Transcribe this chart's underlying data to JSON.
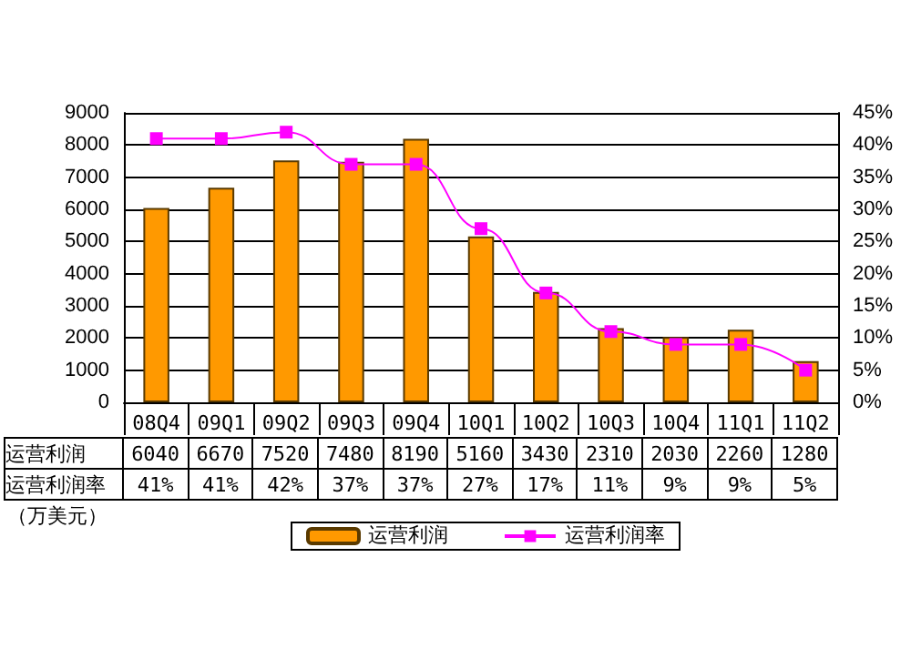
{
  "chart_data": {
    "type": "bar",
    "categories": [
      "08Q4",
      "09Q1",
      "09Q2",
      "09Q3",
      "09Q4",
      "10Q1",
      "10Q2",
      "10Q3",
      "10Q4",
      "11Q1",
      "11Q2"
    ],
    "series": [
      {
        "name": "运营利润",
        "color": "#ff9900",
        "values": [
          6040,
          6670,
          7520,
          7480,
          8190,
          5160,
          3430,
          2310,
          2030,
          2260,
          1280
        ],
        "value_labels": [
          "6040",
          "6670",
          "7520",
          "7480",
          "8190",
          "5160",
          "3430",
          "2310",
          "2030",
          "2260",
          "1280"
        ]
      },
      {
        "name": "运营利润率",
        "type": "line",
        "axis": "y2",
        "color": "#ff00ff",
        "marker": "square",
        "values": [
          41,
          41,
          42,
          37,
          37,
          27,
          17,
          11,
          9,
          9,
          5
        ],
        "value_labels": [
          "41%",
          "41%",
          "42%",
          "37%",
          "37%",
          "27%",
          "17%",
          "11%",
          "9%",
          "9%",
          "5%"
        ]
      }
    ],
    "ylim": [
      0,
      9000
    ],
    "yticks": [
      0,
      1000,
      2000,
      3000,
      4000,
      5000,
      6000,
      7000,
      8000,
      9000
    ],
    "y2lim": [
      0,
      45
    ],
    "y2ticks": [
      {
        "value": 0,
        "label": "0%"
      },
      {
        "value": 5,
        "label": "5%"
      },
      {
        "value": 10,
        "label": "10%"
      },
      {
        "value": 15,
        "label": "15%"
      },
      {
        "value": 20,
        "label": "20%"
      },
      {
        "value": 25,
        "label": "25%"
      },
      {
        "value": 30,
        "label": "30%"
      },
      {
        "value": 35,
        "label": "35%"
      },
      {
        "value": 40,
        "label": "40%"
      },
      {
        "value": 45,
        "label": "45%"
      }
    ],
    "annotations": [
      "（万美元）"
    ],
    "grid": "y",
    "legend": "bottom"
  }
}
